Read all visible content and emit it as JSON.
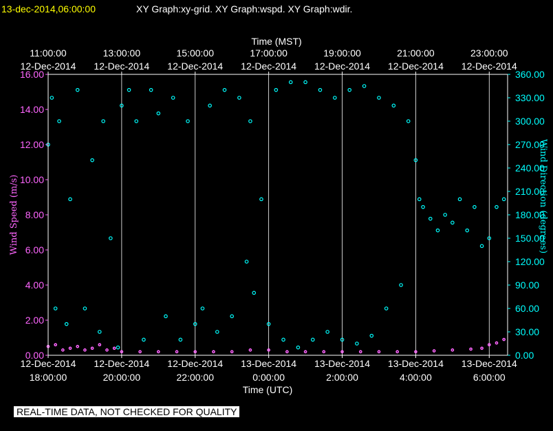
{
  "header": {
    "timestamp": "13-dec-2014,06:00:00",
    "graphs": "XY Graph:xy-grid.  XY Graph:wspd.  XY Graph:wdir."
  },
  "banner": "REAL-TIME DATA, NOT CHECKED FOR QUALITY",
  "colors": {
    "background": "#000000",
    "timestamp": "#ffff00",
    "text": "#ffffff",
    "wind_speed": "#ff66ff",
    "wind_direction": "#00ffff",
    "grid": "#ffffff"
  },
  "chart_data": {
    "type": "scatter",
    "title": "",
    "grid": true,
    "xlabel_top": "Time (MST)",
    "xlabel_bottom": "Time (UTC)",
    "ylabel_left": "Wind Speed (m/s)",
    "ylabel_right": "Wind Direction (degrees)",
    "x_range_utc_hours": [
      18,
      30.5
    ],
    "ylim_left": [
      0,
      16
    ],
    "ylim_right": [
      0,
      360
    ],
    "top_ticks": [
      {
        "x": 18,
        "time": "11:00:00",
        "date": "12-Dec-2014"
      },
      {
        "x": 20,
        "time": "13:00:00",
        "date": "12-Dec-2014"
      },
      {
        "x": 22,
        "time": "15:00:00",
        "date": "12-Dec-2014"
      },
      {
        "x": 24,
        "time": "17:00:00",
        "date": "12-Dec-2014"
      },
      {
        "x": 26,
        "time": "19:00:00",
        "date": "12-Dec-2014"
      },
      {
        "x": 28,
        "time": "21:00:00",
        "date": "12-Dec-2014"
      },
      {
        "x": 30,
        "time": "23:00:00",
        "date": "12-Dec-2014"
      }
    ],
    "bottom_ticks": [
      {
        "x": 18,
        "date": "12-Dec-2014",
        "time": "18:00:00"
      },
      {
        "x": 20,
        "date": "12-Dec-2014",
        "time": "20:00:00"
      },
      {
        "x": 22,
        "date": "12-Dec-2014",
        "time": "22:00:00"
      },
      {
        "x": 24,
        "date": "13-Dec-2014",
        "time": "0:00:00"
      },
      {
        "x": 26,
        "date": "13-Dec-2014",
        "time": "2:00:00"
      },
      {
        "x": 28,
        "date": "13-Dec-2014",
        "time": "4:00:00"
      },
      {
        "x": 30,
        "date": "13-Dec-2014",
        "time": "6:00:00"
      }
    ],
    "left_ticks": [
      "0.00",
      "2.00",
      "4.00",
      "6.00",
      "8.00",
      "10.00",
      "12.00",
      "14.00",
      "16.00"
    ],
    "right_ticks": [
      "0.00",
      "30.00",
      "60.00",
      "90.00",
      "120.00",
      "150.00",
      "180.00",
      "210.00",
      "240.00",
      "270.00",
      "300.00",
      "330.00",
      "360.00"
    ],
    "series": [
      {
        "axis": "left",
        "color": "#ff66ff",
        "points": [
          [
            18.0,
            0.5
          ],
          [
            18.2,
            0.6
          ],
          [
            18.4,
            0.3
          ],
          [
            18.6,
            0.4
          ],
          [
            18.8,
            0.5
          ],
          [
            19.0,
            0.3
          ],
          [
            19.2,
            0.4
          ],
          [
            19.4,
            0.6
          ],
          [
            19.6,
            0.3
          ],
          [
            19.8,
            0.4
          ],
          [
            20.0,
            0.2
          ],
          [
            20.5,
            0.2
          ],
          [
            21.0,
            0.2
          ],
          [
            21.5,
            0.2
          ],
          [
            22.0,
            0.2
          ],
          [
            22.5,
            0.2
          ],
          [
            23.0,
            0.2
          ],
          [
            23.5,
            0.3
          ],
          [
            24.0,
            0.3
          ],
          [
            24.5,
            0.2
          ],
          [
            25.0,
            0.2
          ],
          [
            25.5,
            0.2
          ],
          [
            26.0,
            0.2
          ],
          [
            26.5,
            0.2
          ],
          [
            27.0,
            0.2
          ],
          [
            27.5,
            0.2
          ],
          [
            28.0,
            0.2
          ],
          [
            28.5,
            0.25
          ],
          [
            29.0,
            0.3
          ],
          [
            29.5,
            0.35
          ],
          [
            29.8,
            0.4
          ],
          [
            30.0,
            0.6
          ],
          [
            30.2,
            0.7
          ],
          [
            30.4,
            0.9
          ]
        ]
      },
      {
        "axis": "right",
        "color": "#00ffff",
        "points": [
          [
            18.0,
            270
          ],
          [
            18.1,
            330
          ],
          [
            18.2,
            60
          ],
          [
            18.3,
            300
          ],
          [
            18.5,
            40
          ],
          [
            18.6,
            200
          ],
          [
            18.8,
            340
          ],
          [
            19.0,
            60
          ],
          [
            19.2,
            250
          ],
          [
            19.4,
            30
          ],
          [
            19.5,
            300
          ],
          [
            19.7,
            150
          ],
          [
            19.9,
            10
          ],
          [
            20.0,
            320
          ],
          [
            20.2,
            340
          ],
          [
            20.4,
            300
          ],
          [
            20.6,
            20
          ],
          [
            20.8,
            340
          ],
          [
            21.0,
            310
          ],
          [
            21.2,
            50
          ],
          [
            21.4,
            330
          ],
          [
            21.6,
            20
          ],
          [
            21.8,
            300
          ],
          [
            22.0,
            40
          ],
          [
            22.2,
            60
          ],
          [
            22.4,
            320
          ],
          [
            22.6,
            30
          ],
          [
            22.8,
            340
          ],
          [
            23.0,
            50
          ],
          [
            23.2,
            330
          ],
          [
            23.4,
            120
          ],
          [
            23.5,
            300
          ],
          [
            23.6,
            80
          ],
          [
            23.8,
            200
          ],
          [
            24.0,
            40
          ],
          [
            24.2,
            340
          ],
          [
            24.4,
            20
          ],
          [
            24.6,
            350
          ],
          [
            24.8,
            10
          ],
          [
            25.0,
            350
          ],
          [
            25.2,
            20
          ],
          [
            25.4,
            340
          ],
          [
            25.6,
            30
          ],
          [
            25.8,
            330
          ],
          [
            26.0,
            20
          ],
          [
            26.2,
            340
          ],
          [
            26.4,
            15
          ],
          [
            26.6,
            345
          ],
          [
            26.8,
            25
          ],
          [
            27.0,
            330
          ],
          [
            27.2,
            60
          ],
          [
            27.4,
            320
          ],
          [
            27.6,
            90
          ],
          [
            27.8,
            300
          ],
          [
            28.0,
            250
          ],
          [
            28.1,
            200
          ],
          [
            28.2,
            190
          ],
          [
            28.4,
            175
          ],
          [
            28.6,
            160
          ],
          [
            28.8,
            180
          ],
          [
            29.0,
            170
          ],
          [
            29.2,
            200
          ],
          [
            29.4,
            160
          ],
          [
            29.6,
            190
          ],
          [
            29.8,
            140
          ],
          [
            30.0,
            150
          ],
          [
            30.2,
            190
          ],
          [
            30.4,
            200
          ]
        ]
      }
    ]
  }
}
